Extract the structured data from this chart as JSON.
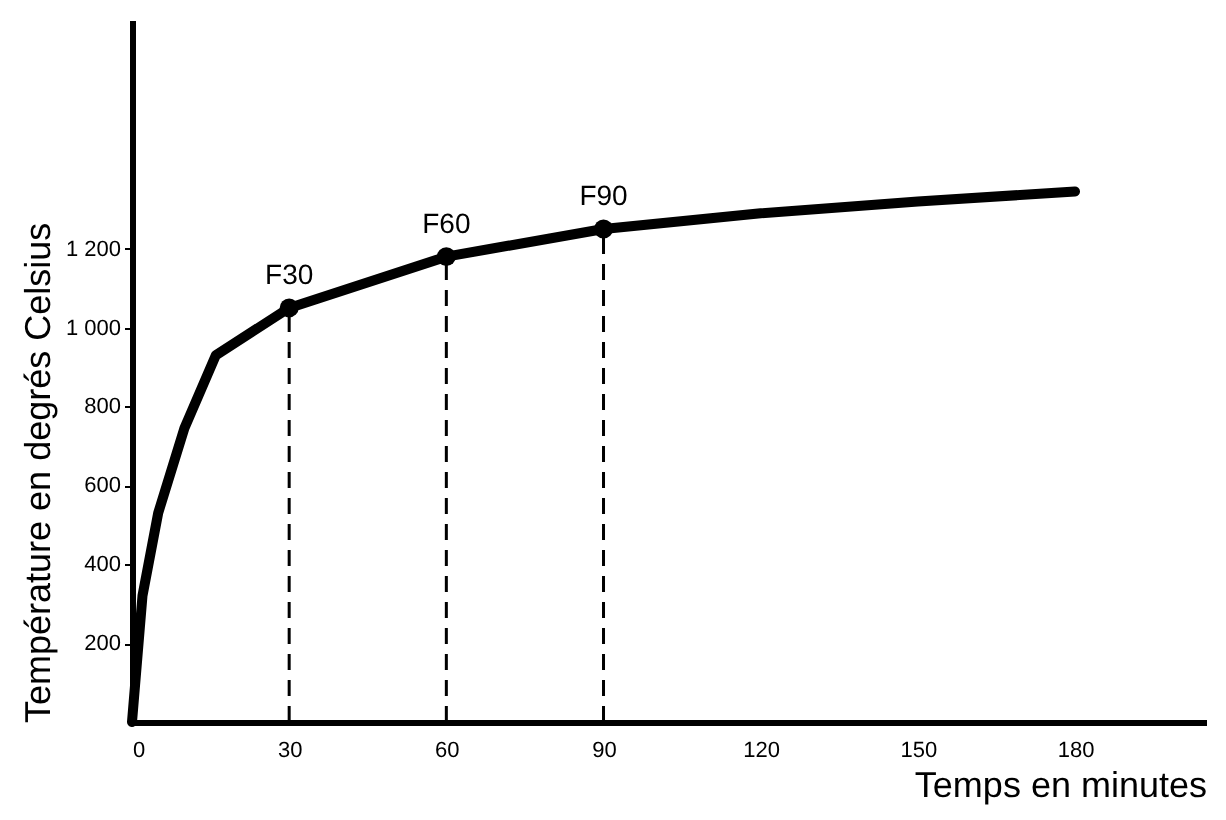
{
  "chart_data": {
    "type": "line",
    "xlabel": "Temps en minutes",
    "ylabel": "Température en degrés Celsius",
    "xlim": [
      0,
      205
    ],
    "ylim": [
      0,
      1780
    ],
    "xticks": [
      0,
      30,
      60,
      90,
      120,
      150,
      180
    ],
    "yticks": [
      200,
      400,
      600,
      800,
      {
        "value": 1000,
        "label": "1 000"
      },
      {
        "value": 1200,
        "label": "1 200"
      }
    ],
    "series": [
      {
        "color": "#000000",
        "marker": "none",
        "line_style": "solid",
        "x": [
          0,
          2,
          5,
          10,
          16,
          30,
          60,
          90,
          120,
          150,
          180
        ],
        "values": [
          0,
          320,
          530,
          745,
          930,
          1050,
          1180,
          1250,
          1290,
          1320,
          1345
        ]
      },
      {
        "type": "lollipop",
        "color": "#000000",
        "marker": "circle",
        "line_style": "dashed",
        "x": [
          30,
          60,
          90
        ],
        "values": [
          1050,
          1180,
          1250
        ]
      }
    ],
    "annotations": [
      {
        "text": "F30",
        "x": 30,
        "y": 1050
      },
      {
        "text": "F60",
        "x": 60,
        "y": 1180
      },
      {
        "text": "F90",
        "x": 90,
        "y": 1250
      }
    ]
  }
}
